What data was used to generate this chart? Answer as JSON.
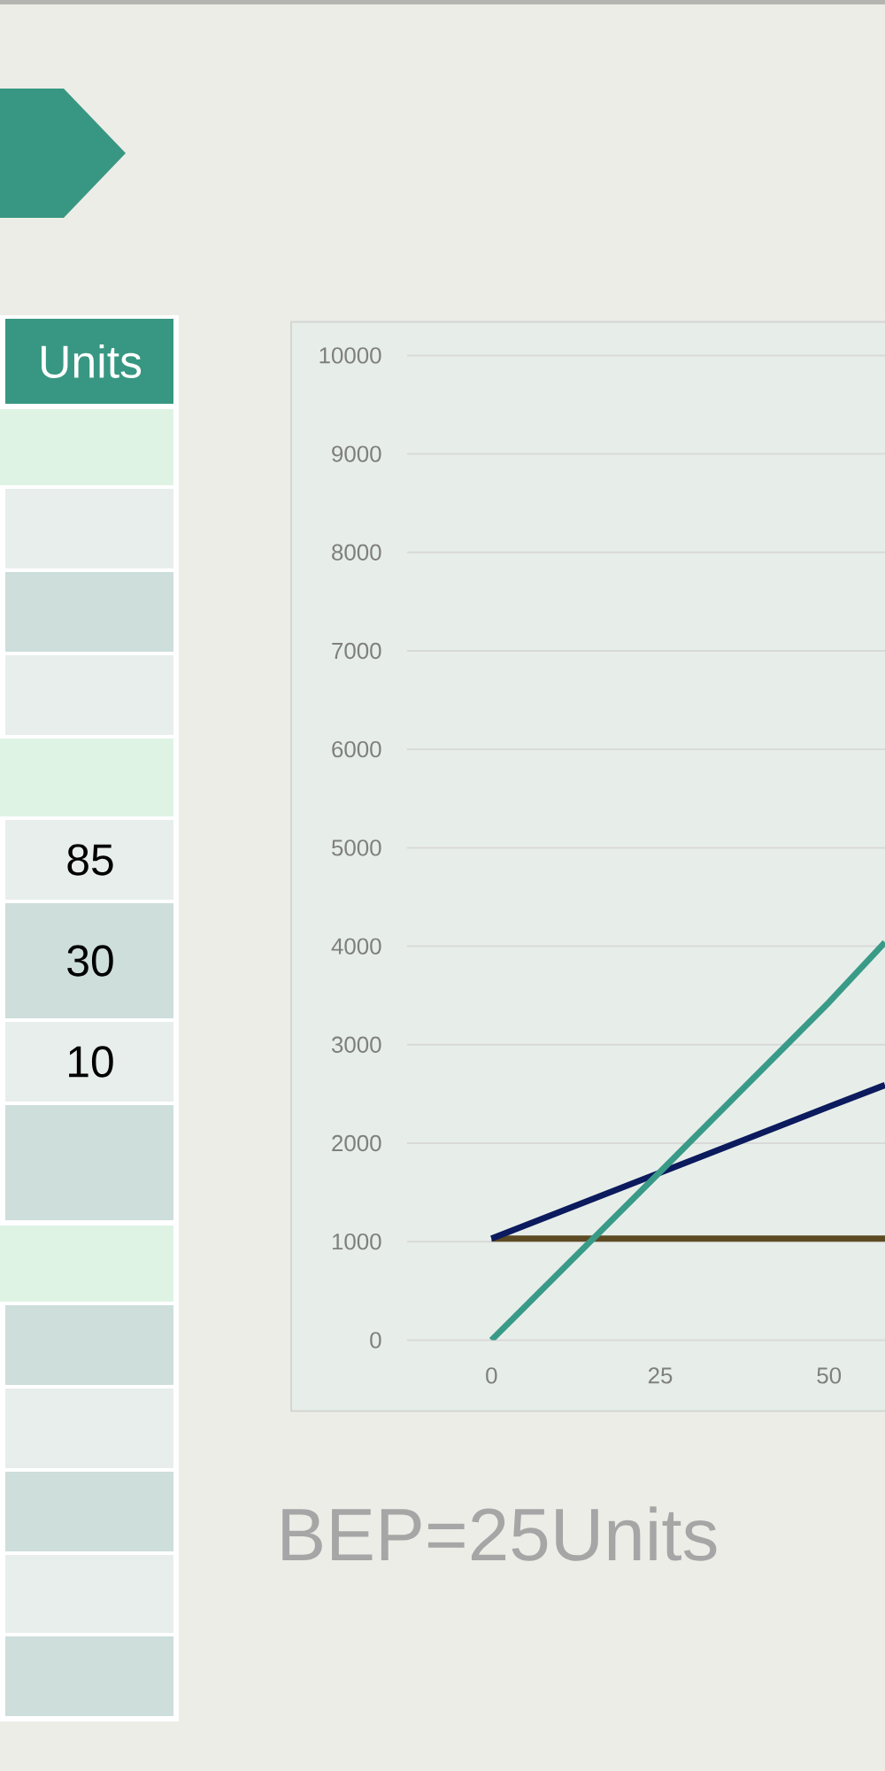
{
  "chart_data": {
    "type": "line",
    "x": [
      0,
      25,
      50,
      58.3
    ],
    "xlim": [
      -12.5,
      58.3
    ],
    "xticks": [
      0,
      25,
      50
    ],
    "ylim": [
      0,
      10000
    ],
    "yticks": [
      0,
      1000,
      2000,
      3000,
      4000,
      5000,
      6000,
      7000,
      8000,
      9000,
      10000
    ],
    "grid": "y",
    "marker": "none",
    "line_style": "solid",
    "series": [
      {
        "color": "#5c4a22",
        "values": [
          1030,
          1030,
          1030,
          1030
        ]
      },
      {
        "color": "#0c1a5e",
        "values": [
          1030,
          1700,
          2370,
          2590
        ]
      },
      {
        "color": "#3a9a88",
        "values": [
          0,
          1710,
          3430,
          4040
        ]
      }
    ],
    "annotations": [
      "Units",
      "85",
      "30",
      "10",
      "BEP=25Units"
    ]
  }
}
